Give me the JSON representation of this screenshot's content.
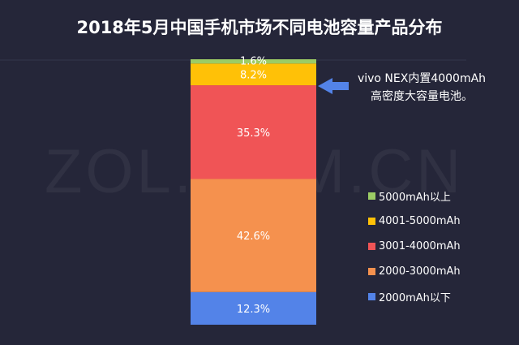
{
  "chart_data": {
    "type": "bar",
    "stacked": true,
    "title": "2018年5月中国手机市场不同电池容量产品分布",
    "series": [
      {
        "name": "2000mAh以下",
        "value": 12.3,
        "label": "12.3%",
        "color": "#5383e8"
      },
      {
        "name": "2000-3000mAh",
        "value": 42.6,
        "label": "42.6%",
        "color": "#f5914e"
      },
      {
        "name": "3001-4000mAh",
        "value": 35.3,
        "label": "35.3%",
        "color": "#f05456"
      },
      {
        "name": "4001-5000mAh",
        "value": 8.2,
        "label": "8.2%",
        "color": "#ffc107"
      },
      {
        "name": "5000mAh以上",
        "value": 1.6,
        "label": "1.6%",
        "color": "#9ccc65"
      }
    ],
    "ylim": [
      0,
      100
    ],
    "legend_position": "right",
    "annotation": [
      "vivo NEX内置4000mAh",
      "高密度大容量电池。"
    ]
  },
  "watermark": "ZOL.COM.CN"
}
